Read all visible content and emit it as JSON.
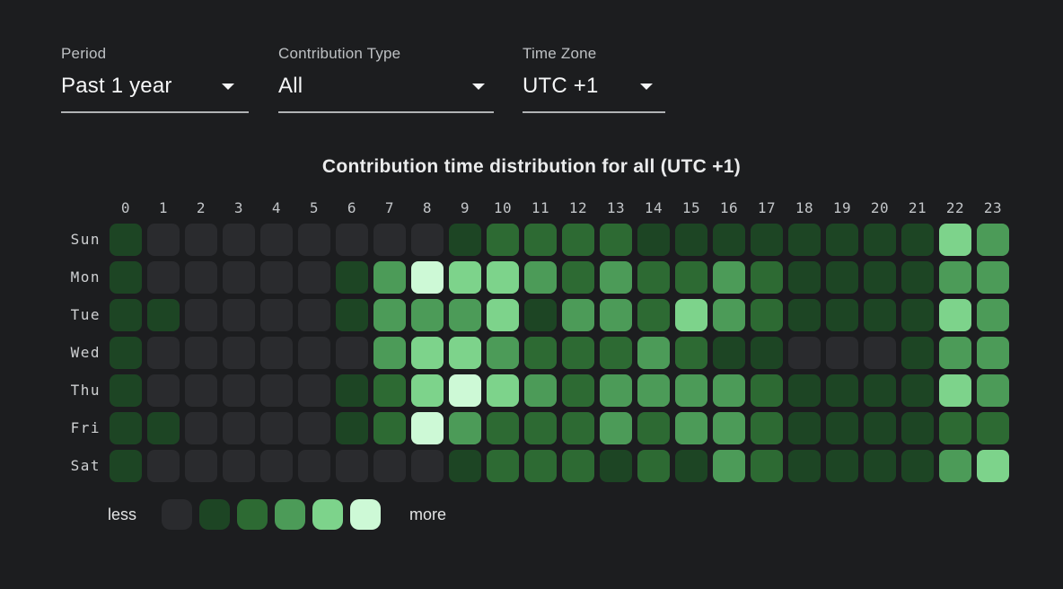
{
  "filters": [
    {
      "label": "Period",
      "value": "Past 1 year"
    },
    {
      "label": "Contribution Type",
      "value": "All"
    },
    {
      "label": "Time Zone",
      "value": "UTC +1"
    }
  ],
  "chart_data": {
    "type": "heatmap",
    "title": "Contribution time distribution for all (UTC +1)",
    "x_labels": [
      "0",
      "1",
      "2",
      "3",
      "4",
      "5",
      "6",
      "7",
      "8",
      "9",
      "10",
      "11",
      "12",
      "13",
      "14",
      "15",
      "16",
      "17",
      "18",
      "19",
      "20",
      "21",
      "22",
      "23"
    ],
    "y_labels": [
      "Sun",
      "Mon",
      "Tue",
      "Wed",
      "Thu",
      "Fri",
      "Sat"
    ],
    "levels": [
      "#2a2b2e",
      "#1d4524",
      "#2d6a33",
      "#4c9b58",
      "#7dd38b",
      "#cdf9d6"
    ],
    "values": [
      [
        1,
        0,
        0,
        0,
        0,
        0,
        0,
        0,
        0,
        1,
        2,
        2,
        2,
        2,
        1,
        1,
        1,
        1,
        1,
        1,
        1,
        1,
        4,
        3
      ],
      [
        1,
        0,
        0,
        0,
        0,
        0,
        1,
        3,
        5,
        4,
        4,
        3,
        2,
        3,
        2,
        2,
        3,
        2,
        1,
        1,
        1,
        1,
        3,
        3
      ],
      [
        1,
        1,
        0,
        0,
        0,
        0,
        1,
        3,
        3,
        3,
        4,
        1,
        3,
        3,
        2,
        4,
        3,
        2,
        1,
        1,
        1,
        1,
        4,
        3
      ],
      [
        1,
        0,
        0,
        0,
        0,
        0,
        0,
        3,
        4,
        4,
        3,
        2,
        2,
        2,
        3,
        2,
        1,
        1,
        0,
        0,
        0,
        1,
        3,
        3
      ],
      [
        1,
        0,
        0,
        0,
        0,
        0,
        1,
        2,
        4,
        5,
        4,
        3,
        2,
        3,
        3,
        3,
        3,
        2,
        1,
        1,
        1,
        1,
        4,
        3
      ],
      [
        1,
        1,
        0,
        0,
        0,
        0,
        1,
        2,
        5,
        3,
        2,
        2,
        2,
        3,
        2,
        3,
        3,
        2,
        1,
        1,
        1,
        1,
        2,
        2
      ],
      [
        1,
        0,
        0,
        0,
        0,
        0,
        0,
        0,
        0,
        1,
        2,
        2,
        2,
        1,
        2,
        1,
        3,
        2,
        1,
        1,
        1,
        1,
        3,
        4
      ]
    ],
    "legend": {
      "less_label": "less",
      "more_label": "more"
    }
  }
}
